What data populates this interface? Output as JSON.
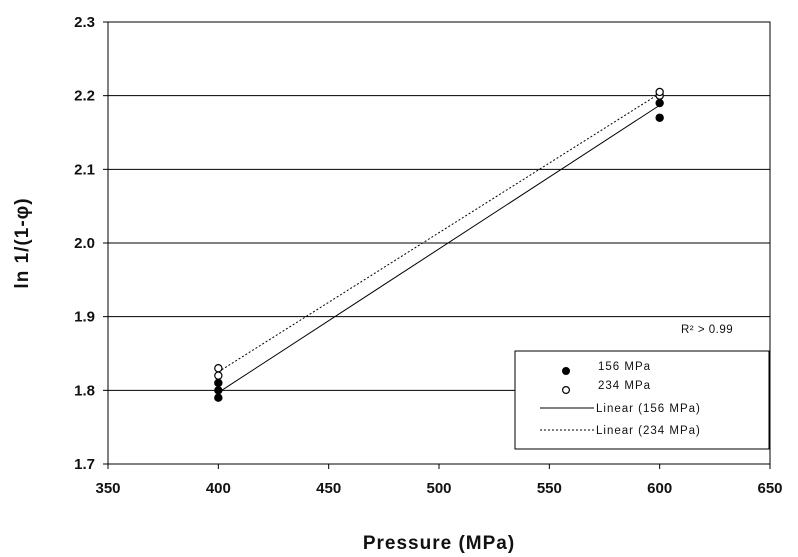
{
  "chart_data": {
    "type": "scatter",
    "xlabel": "Pressure (MPa)",
    "ylabel": "ln 1/(1-φ)",
    "xlim": [
      350,
      650
    ],
    "ylim": [
      1.7,
      2.3
    ],
    "x_ticks": [
      "350",
      "400",
      "450",
      "500",
      "550",
      "600",
      "650"
    ],
    "y_ticks": [
      "1.7",
      "1.8",
      "1.9",
      "2.0",
      "2.1",
      "2.2",
      "2.3"
    ],
    "grid": "horizontal",
    "legend_position": "bottom-right",
    "annotation": "R² > 0.99",
    "series": [
      {
        "name": "156 MPa",
        "marker": "filled-circle",
        "points": [
          [
            400,
            1.79
          ],
          [
            400,
            1.8
          ],
          [
            400,
            1.81
          ],
          [
            600,
            2.17
          ],
          [
            600,
            2.19
          ],
          [
            600,
            2.2
          ]
        ]
      },
      {
        "name": "234 MPa",
        "marker": "open-circle",
        "points": [
          [
            400,
            1.82
          ],
          [
            400,
            1.83
          ],
          [
            600,
            2.2
          ],
          [
            600,
            2.205
          ]
        ]
      },
      {
        "name": "Linear (156 MPa)",
        "line": "solid",
        "points": [
          [
            400,
            1.797
          ],
          [
            600,
            2.187
          ]
        ]
      },
      {
        "name": "Linear (234 MPa)",
        "line": "dotted",
        "points": [
          [
            400,
            1.825
          ],
          [
            600,
            2.203
          ]
        ]
      }
    ]
  },
  "colors": {
    "ink": "#111111",
    "grid": "#000000",
    "background": "#ffffff"
  }
}
